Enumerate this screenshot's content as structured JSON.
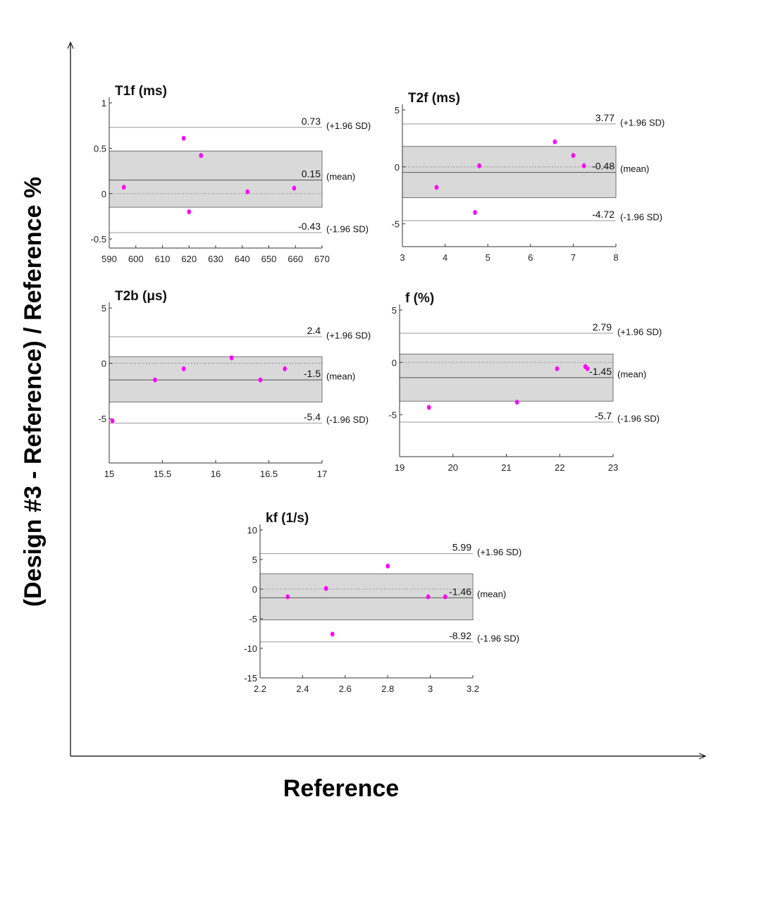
{
  "figure": {
    "ylabel": "(Design #3 - Reference) / Reference %",
    "xlabel": "Reference",
    "marker_color": "#ff00ff",
    "band_color": "#d9d9d9"
  },
  "chart_data": [
    {
      "type": "scatter",
      "title": "T1f (ms)",
      "xlim": [
        590,
        670
      ],
      "ylim": [
        -0.6,
        1
      ],
      "xticks": [
        590,
        600,
        610,
        620,
        630,
        640,
        650,
        660,
        670
      ],
      "yticks": [
        -0.5,
        0,
        0.5,
        1
      ],
      "points": [
        [
          595.5,
          0.07
        ],
        [
          618,
          0.61
        ],
        [
          620,
          -0.2
        ],
        [
          624.5,
          0.42
        ],
        [
          642,
          0.02
        ],
        [
          659.5,
          0.06
        ]
      ],
      "band": [
        -0.15,
        0.47
      ],
      "upper": {
        "value": 0.73,
        "label": "0.73",
        "note": "(+1.96 SD)"
      },
      "mean": {
        "value": 0.15,
        "label": "0.15",
        "note": "(mean)"
      },
      "lower": {
        "value": -0.43,
        "label": "-0.43",
        "note": "(-1.96 SD)"
      }
    },
    {
      "type": "scatter",
      "title": "T2f (ms)",
      "xlim": [
        3,
        8
      ],
      "ylim": [
        -7,
        5.5
      ],
      "xticks": [
        3,
        4,
        5,
        6,
        7,
        8
      ],
      "yticks": [
        -5,
        0,
        5
      ],
      "points": [
        [
          3.8,
          -1.8
        ],
        [
          4.7,
          -4
        ],
        [
          4.8,
          0.1
        ],
        [
          6.57,
          2.2
        ],
        [
          7.0,
          1.0
        ],
        [
          7.25,
          0.1
        ]
      ],
      "band": [
        -2.7,
        1.8
      ],
      "upper": {
        "value": 3.77,
        "label": "3.77",
        "note": "(+1.96 SD)"
      },
      "mean": {
        "value": -0.48,
        "label": "-0.48",
        "note": "(mean)"
      },
      "lower": {
        "value": -4.72,
        "label": "-4.72",
        "note": "(-1.96 SD)"
      }
    },
    {
      "type": "scatter",
      "title": "T2b (μs)",
      "xlim": [
        15,
        17
      ],
      "ylim": [
        -9,
        5.5
      ],
      "xticks": [
        15,
        15.5,
        16,
        16.5,
        17
      ],
      "yticks": [
        -5,
        0,
        5
      ],
      "points": [
        [
          15.03,
          -5.2
        ],
        [
          15.43,
          -1.5
        ],
        [
          15.7,
          -0.5
        ],
        [
          16.15,
          0.5
        ],
        [
          16.42,
          -1.5
        ],
        [
          16.65,
          -0.5
        ]
      ],
      "band": [
        -3.5,
        0.6
      ],
      "upper": {
        "value": 2.4,
        "label": "2.4",
        "note": "(+1.96 SD)"
      },
      "mean": {
        "value": -1.5,
        "label": "-1.5",
        "note": "(mean)"
      },
      "lower": {
        "value": -5.4,
        "label": "-5.4",
        "note": "(-1.96 SD)"
      }
    },
    {
      "type": "scatter",
      "title": "f (%)",
      "xlim": [
        19,
        23
      ],
      "ylim": [
        -9,
        5.5
      ],
      "xticks": [
        19,
        20,
        21,
        22,
        23
      ],
      "yticks": [
        -5,
        0,
        5
      ],
      "points": [
        [
          19.55,
          -4.3
        ],
        [
          21.2,
          -3.8
        ],
        [
          21.95,
          -0.6
        ],
        [
          22.48,
          -0.4
        ],
        [
          22.52,
          -0.6
        ]
      ],
      "band": [
        -3.7,
        0.8
      ],
      "upper": {
        "value": 2.79,
        "label": "2.79",
        "note": "(+1.96 SD)"
      },
      "mean": {
        "value": -1.45,
        "label": "-1.45",
        "note": "(mean)"
      },
      "lower": {
        "value": -5.7,
        "label": "-5.7",
        "note": "(-1.96 SD)"
      }
    },
    {
      "type": "scatter",
      "title": "kf (1/s)",
      "xlim": [
        2.2,
        3.2
      ],
      "ylim": [
        -15,
        11.5
      ],
      "xticks": [
        2.2,
        2.4,
        2.6,
        2.8,
        3,
        3.2
      ],
      "yticks": [
        -15,
        -10,
        -5,
        0,
        5,
        10
      ],
      "points": [
        [
          2.33,
          -1.3
        ],
        [
          2.51,
          0.1
        ],
        [
          2.54,
          -7.6
        ],
        [
          2.8,
          3.9
        ],
        [
          2.99,
          -1.3
        ],
        [
          3.07,
          -1.3
        ]
      ],
      "band": [
        -5.2,
        2.6
      ],
      "upper": {
        "value": 5.99,
        "label": "5.99",
        "note": "(+1.96 SD)"
      },
      "mean": {
        "value": -1.46,
        "label": "-1.46",
        "note": "(mean)"
      },
      "lower": {
        "value": -8.92,
        "label": "-8.92",
        "note": "(-1.96 SD)"
      }
    }
  ]
}
